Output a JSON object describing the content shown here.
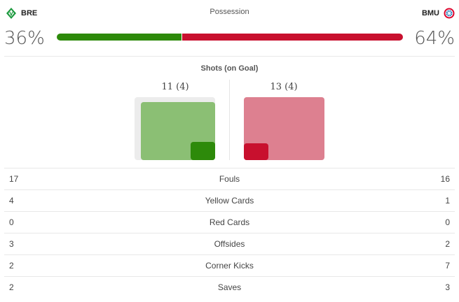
{
  "home": {
    "abbr": "BRE",
    "possession_pct": 36,
    "possession_label": "36%",
    "shots_label": "11 (4)",
    "shots": 11,
    "shots_on_goal": 4,
    "color": "#2d8a0a",
    "light_color": "#8bbf74"
  },
  "away": {
    "abbr": "BMU",
    "possession_pct": 64,
    "possession_label": "64%",
    "shots_label": "13 (4)",
    "shots": 13,
    "shots_on_goal": 4,
    "color": "#c8102e",
    "light_color": "#dd8090"
  },
  "possession_title": "Possession",
  "shots_title": "Shots (on Goal)",
  "stats": [
    {
      "home": "17",
      "label": "Fouls",
      "away": "16"
    },
    {
      "home": "4",
      "label": "Yellow Cards",
      "away": "1"
    },
    {
      "home": "0",
      "label": "Red Cards",
      "away": "0"
    },
    {
      "home": "3",
      "label": "Offsides",
      "away": "2"
    },
    {
      "home": "2",
      "label": "Corner Kicks",
      "away": "7"
    },
    {
      "home": "2",
      "label": "Saves",
      "away": "3"
    }
  ]
}
